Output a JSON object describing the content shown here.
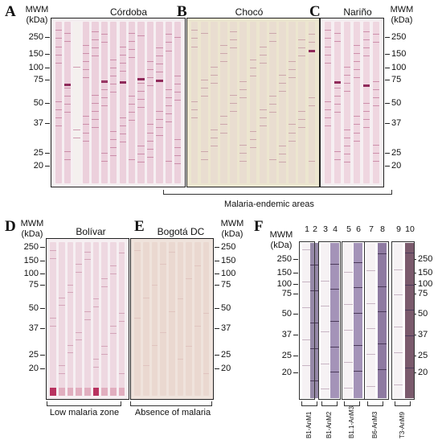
{
  "panels": [
    {
      "letter": "A",
      "region": "Córdoba"
    },
    {
      "letter": "B",
      "region": "Chocó"
    },
    {
      "letter": "C",
      "region": "Nariño"
    },
    {
      "letter": "D",
      "region": "Bolívar"
    },
    {
      "letter": "E",
      "region": "Bogotá DC"
    },
    {
      "letter": "F",
      "region": ""
    }
  ],
  "mwm_label": "MWM",
  "mwm_unit": "(kDa)",
  "markers": [
    "250",
    "150",
    "100",
    "75",
    "50",
    "37",
    "25",
    "20"
  ],
  "captions": {
    "endemic": "Malaria-endemic areas",
    "low": "Low malaria zone",
    "absence": "Absence of malaria"
  },
  "panel_f": {
    "lanes": [
      "1",
      "2",
      "3",
      "4",
      "5",
      "6",
      "7",
      "8",
      "9",
      "10"
    ],
    "antigens": [
      "B1-AnM1",
      "B1-AnM2",
      "B1.1-AnM3",
      "B6-AnM3",
      "T3-AnM9"
    ]
  },
  "colors": {
    "strip_pink": "#e9ccd7",
    "band_dark": "#8f2a5a",
    "membrane_bg": "#f7f1f3",
    "chocó_bg": "#ece6cf"
  }
}
